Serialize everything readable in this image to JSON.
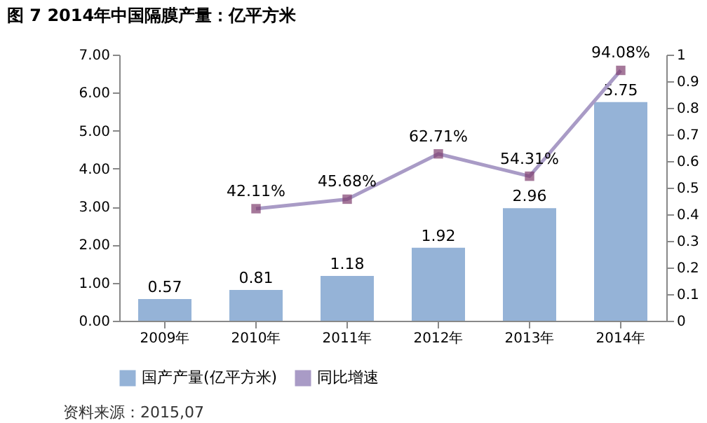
{
  "chart_data": {
    "type": "bar",
    "title": "图 7 2014年中国隔膜产量：亿平方米",
    "categories": [
      "2009年",
      "2010年",
      "2011年",
      "2012年",
      "2013年",
      "2014年"
    ],
    "series": [
      {
        "name": "国产产量(亿平方米)",
        "color": "#95b3d7",
        "values": [
          0.57,
          0.81,
          1.18,
          1.92,
          2.96,
          5.75
        ],
        "value_labels": [
          "0.57",
          "0.81",
          "1.18",
          "1.92",
          "2.96",
          "5.75"
        ]
      },
      {
        "name": "同比增速",
        "type": "line",
        "axis": "y2",
        "color": "#a99bc6",
        "marker": "square",
        "values": [
          null,
          0.4211,
          0.4568,
          0.6271,
          0.5431,
          0.9408
        ],
        "value_labels": [
          null,
          "42.11%",
          "45.68%",
          "62.71%",
          "54.31%",
          "94.08%"
        ]
      }
    ],
    "ylim": [
      0,
      7
    ],
    "yticks": [
      {
        "value": 0,
        "label": "0.00"
      },
      {
        "value": 1,
        "label": "1.00"
      },
      {
        "value": 2,
        "label": "2.00"
      },
      {
        "value": 3,
        "label": "3.00"
      },
      {
        "value": 4,
        "label": "4.00"
      },
      {
        "value": 5,
        "label": "5.00"
      },
      {
        "value": 6,
        "label": "6.00"
      },
      {
        "value": 7,
        "label": "7.00"
      }
    ],
    "y2lim": [
      0,
      1
    ],
    "y2ticks": [
      0,
      0.1,
      0.2,
      0.3,
      0.4,
      0.5,
      0.6,
      0.7,
      0.8,
      0.9,
      1
    ],
    "legend": "bottom",
    "grid": false,
    "annotations": [
      "资料来源：2015,07"
    ]
  }
}
